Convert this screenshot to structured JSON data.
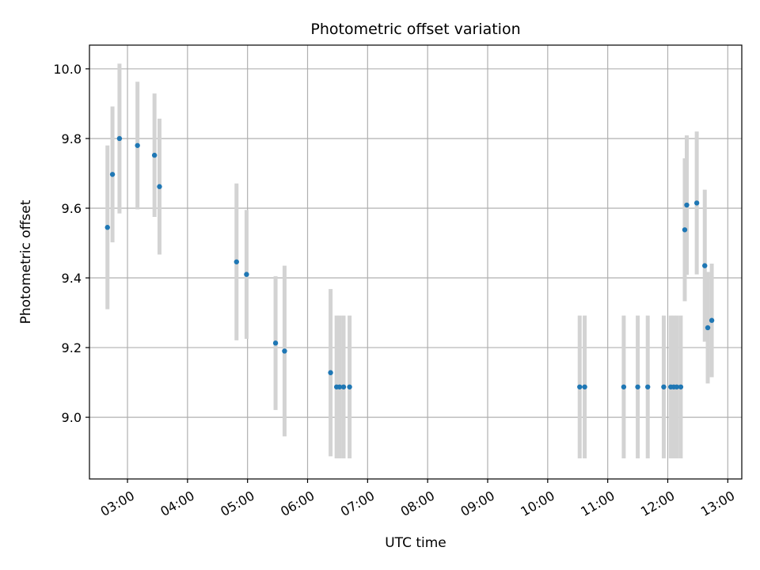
{
  "chart_data": {
    "type": "scatter",
    "title": "Photometric offset variation",
    "xlabel": "UTC time",
    "ylabel": "Photometric offset",
    "x_tick_labels": [
      "03:00",
      "04:00",
      "05:00",
      "06:00",
      "07:00",
      "08:00",
      "09:00",
      "10:00",
      "11:00",
      "12:00",
      "13:00"
    ],
    "y_tick_labels": [
      "9.0",
      "9.2",
      "9.4",
      "9.6",
      "9.8",
      "10.0"
    ],
    "x_ticks": [
      "03:00",
      "04:00",
      "05:00",
      "06:00",
      "07:00",
      "08:00",
      "09:00",
      "10:00",
      "11:00",
      "12:00",
      "13:00"
    ],
    "y_ticks": [
      9.0,
      9.2,
      9.4,
      9.6,
      9.8,
      10.0
    ],
    "xlim": [
      "02:22",
      "13:14"
    ],
    "ylim": [
      8.823,
      10.068
    ],
    "grid": true,
    "marker_color": "#1f77b4",
    "errorbar_color": "#d3d3d3",
    "series": [
      {
        "points": [
          {
            "x": "02:40",
            "y": 9.545,
            "yerr": 0.235
          },
          {
            "x": "02:45",
            "y": 9.697,
            "yerr": 0.195
          },
          {
            "x": "02:52",
            "y": 9.8,
            "yerr": 0.215
          },
          {
            "x": "03:10",
            "y": 9.78,
            "yerr": 0.183
          },
          {
            "x": "03:27",
            "y": 9.752,
            "yerr": 0.177
          },
          {
            "x": "03:32",
            "y": 9.662,
            "yerr": 0.195
          },
          {
            "x": "04:49",
            "y": 9.446,
            "yerr": 0.225
          },
          {
            "x": "04:59",
            "y": 9.41,
            "yerr": 0.185
          },
          {
            "x": "05:28",
            "y": 9.213,
            "yerr": 0.192
          },
          {
            "x": "05:37",
            "y": 9.19,
            "yerr": 0.245
          },
          {
            "x": "06:23",
            "y": 9.128,
            "yerr": 0.24
          },
          {
            "x": "06:29",
            "y": 9.087,
            "yerr": 0.205
          },
          {
            "x": "06:32",
            "y": 9.087,
            "yerr": 0.205
          },
          {
            "x": "06:36",
            "y": 9.087,
            "yerr": 0.205
          },
          {
            "x": "06:42",
            "y": 9.087,
            "yerr": 0.205
          },
          {
            "x": "10:32",
            "y": 9.087,
            "yerr": 0.205
          },
          {
            "x": "10:37",
            "y": 9.087,
            "yerr": 0.205
          },
          {
            "x": "11:16",
            "y": 9.087,
            "yerr": 0.205
          },
          {
            "x": "11:30",
            "y": 9.087,
            "yerr": 0.205
          },
          {
            "x": "11:40",
            "y": 9.087,
            "yerr": 0.205
          },
          {
            "x": "11:56",
            "y": 9.087,
            "yerr": 0.205
          },
          {
            "x": "12:03",
            "y": 9.087,
            "yerr": 0.205
          },
          {
            "x": "12:06",
            "y": 9.087,
            "yerr": 0.205
          },
          {
            "x": "12:09",
            "y": 9.087,
            "yerr": 0.205
          },
          {
            "x": "12:13",
            "y": 9.087,
            "yerr": 0.205
          },
          {
            "x": "12:17",
            "y": 9.538,
            "yerr": 0.205
          },
          {
            "x": "12:19",
            "y": 9.609,
            "yerr": 0.2
          },
          {
            "x": "12:29",
            "y": 9.615,
            "yerr": 0.205
          },
          {
            "x": "12:37",
            "y": 9.435,
            "yerr": 0.218
          },
          {
            "x": "12:40",
            "y": 9.257,
            "yerr": 0.16
          },
          {
            "x": "12:44",
            "y": 9.278,
            "yerr": 0.163
          }
        ]
      }
    ]
  }
}
